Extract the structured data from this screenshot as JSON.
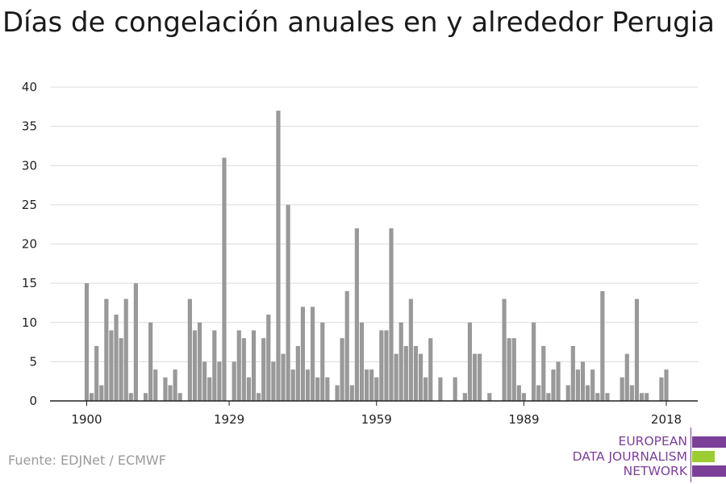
{
  "chart_data": {
    "type": "bar",
    "title": "Días de congelación anuales en y alrededor Perugia",
    "xlabel": "",
    "ylabel": "",
    "x_start": 1900,
    "values": [
      15,
      1,
      7,
      2,
      13,
      9,
      11,
      8,
      13,
      1,
      15,
      0,
      1,
      10,
      4,
      0,
      3,
      2,
      4,
      1,
      0,
      13,
      9,
      10,
      5,
      3,
      9,
      5,
      31,
      0,
      5,
      9,
      8,
      3,
      9,
      1,
      8,
      11,
      5,
      37,
      6,
      25,
      4,
      7,
      12,
      4,
      12,
      3,
      10,
      3,
      0,
      2,
      8,
      14,
      2,
      22,
      10,
      4,
      4,
      3,
      9,
      9,
      22,
      6,
      10,
      7,
      13,
      7,
      6,
      3,
      8,
      0,
      3,
      0,
      0,
      3,
      0,
      1,
      10,
      6,
      6,
      0,
      1,
      0,
      0,
      13,
      8,
      8,
      2,
      1,
      0,
      10,
      2,
      7,
      1,
      4,
      5,
      0,
      2,
      7,
      4,
      5,
      2,
      4,
      1,
      14,
      1,
      0,
      0,
      3,
      6,
      2,
      13,
      1,
      1,
      0,
      0,
      3,
      4
    ],
    "x_ticks": [
      "1900",
      "1929",
      "1959",
      "1989",
      "2018"
    ],
    "y_ticks": [
      "0",
      "5",
      "10",
      "15",
      "20",
      "25",
      "30",
      "35",
      "40"
    ],
    "ylim": [
      0,
      40
    ],
    "grid": true,
    "bar_color": "#999999"
  },
  "source": "Fuente: EDJNet / ECMWF",
  "logo": {
    "line1": "EUROPEAN",
    "line2": "DATA JOURNALISM",
    "line3": "NETWORK",
    "purple": "#7c3f98",
    "green": "#9acd32"
  }
}
